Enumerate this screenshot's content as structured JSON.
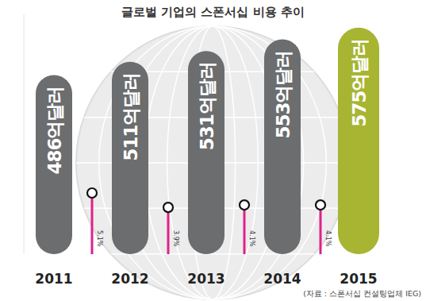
{
  "chart_data": {
    "type": "bar",
    "title": "글로벌 기업의 스폰서십 비용 추이",
    "source": "(자료 : 스폰서십 컨설팅업체 IEG)",
    "categories": [
      "2011",
      "2012",
      "2013",
      "2014",
      "2015"
    ],
    "values": [
      486,
      511,
      531,
      553,
      575
    ],
    "value_labels": [
      "486억달러",
      "511억달러",
      "531억달러",
      "553억달러",
      "575억달러"
    ],
    "colors": [
      "#6c6d6f",
      "#6c6d6f",
      "#6c6d6f",
      "#6c6d6f",
      "#a7b532"
    ],
    "ylim": [
      150,
      600
    ],
    "tick_labels": "x",
    "data_labels": true,
    "growth": {
      "values": [
        5.1,
        3.9,
        4.1,
        4.1
      ],
      "value_labels": [
        "5.1%",
        "3.9%",
        "4.1%",
        "4.1%"
      ],
      "color": "#e0218a"
    },
    "y2lim": [
      0,
      20
    ]
  }
}
